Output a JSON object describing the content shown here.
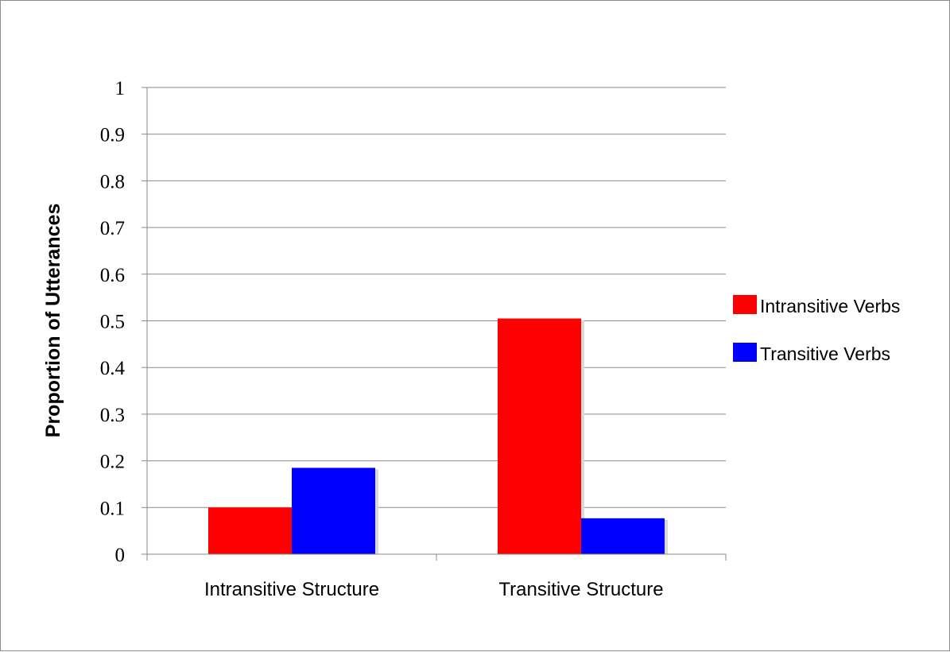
{
  "chart_data": {
    "type": "bar",
    "title": "",
    "xlabel": "",
    "ylabel": "Proportion of Utterances",
    "categories": [
      "Intransitive Structure",
      "Transitive Structure"
    ],
    "series": [
      {
        "name": "Intransitive Verbs",
        "values": [
          0.1,
          0.505
        ],
        "color": "#ff0000"
      },
      {
        "name": "Transitive Verbs",
        "values": [
          0.185,
          0.077
        ],
        "color": "#0000ff"
      }
    ],
    "ylim": [
      0,
      1
    ],
    "yticks": [
      "0",
      "0.1",
      "0.2",
      "0.3",
      "0.4",
      "0.5",
      "0.6",
      "0.7",
      "0.8",
      "0.9",
      "1"
    ],
    "grid": true,
    "legend": "right"
  }
}
